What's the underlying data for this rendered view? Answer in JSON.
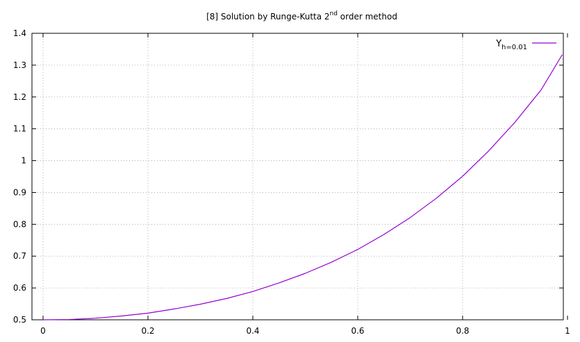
{
  "chart_data": {
    "type": "line",
    "title": {
      "prefix": "[8] Solution by Runge-Kutta 2",
      "superscript": "nd",
      "suffix": " order method"
    },
    "xlabel": "",
    "ylabel": "",
    "xlim": [
      0,
      1
    ],
    "ylim": [
      0.5,
      1.4
    ],
    "x_ticks": [
      "0",
      "0.2",
      "0.4",
      "0.6",
      "0.8",
      "1"
    ],
    "y_ticks": [
      "0.5",
      "0.6",
      "0.7",
      "0.8",
      "0.9",
      "1",
      "1.1",
      "1.2",
      "1.3",
      "1.4"
    ],
    "grid": true,
    "legend_position": "top-right",
    "series": [
      {
        "name_main": "Y",
        "name_sub": "h=0.01",
        "color": "#9400d3",
        "x": [
          0,
          0.05,
          0.1,
          0.15,
          0.2,
          0.25,
          0.3,
          0.35,
          0.4,
          0.45,
          0.5,
          0.55,
          0.6,
          0.65,
          0.7,
          0.75,
          0.8,
          0.85,
          0.9,
          0.95,
          0.99
        ],
        "y": [
          0.5,
          0.501,
          0.505,
          0.512,
          0.521,
          0.534,
          0.549,
          0.567,
          0.589,
          0.616,
          0.646,
          0.681,
          0.721,
          0.768,
          0.821,
          0.882,
          0.951,
          1.031,
          1.121,
          1.223,
          1.333
        ]
      }
    ]
  }
}
